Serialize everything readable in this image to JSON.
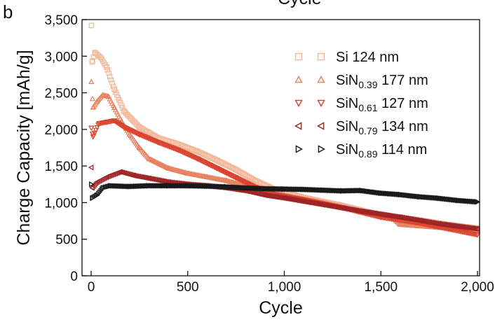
{
  "panel_label": "b",
  "top_cut_text": "Cycle",
  "chart_data": {
    "type": "scatter",
    "title": "",
    "xlabel": "Cycle",
    "ylabel": "Charge Capacity [mAh/g]",
    "xlim": [
      0,
      2000
    ],
    "ylim": [
      0,
      3500
    ],
    "x_ticks": [
      0,
      500,
      1000,
      1500,
      2000
    ],
    "y_ticks": [
      0,
      500,
      1000,
      1500,
      2000,
      2500,
      3000,
      3500
    ],
    "x_tick_labels": [
      "0",
      "500",
      "1,000",
      "1,500",
      "2,000"
    ],
    "y_tick_labels": [
      "0",
      "500",
      "1,000",
      "1,500",
      "2,000",
      "2,500",
      "3,000",
      "3,500"
    ],
    "grid": false,
    "legend_position": "top-right",
    "series": [
      {
        "name_base": "Si",
        "name_sub": "",
        "name_suffix": " 124 nm",
        "marker": "square",
        "color": "#f2b89c",
        "points": [
          [
            1,
            3420
          ],
          [
            5,
            2920
          ],
          [
            20,
            3050
          ],
          [
            50,
            2980
          ],
          [
            80,
            2850
          ],
          [
            120,
            2550
          ],
          [
            170,
            2250
          ],
          [
            250,
            2030
          ],
          [
            350,
            1880
          ],
          [
            450,
            1800
          ],
          [
            550,
            1700
          ],
          [
            650,
            1580
          ],
          [
            750,
            1450
          ],
          [
            850,
            1300
          ],
          [
            950,
            1180
          ],
          [
            1100,
            1070
          ],
          [
            1300,
            960
          ],
          [
            1500,
            830
          ],
          [
            1700,
            760
          ],
          [
            1850,
            700
          ],
          [
            2000,
            650
          ]
        ]
      },
      {
        "name_base": "SiN",
        "name_sub": "0.39",
        "name_suffix": " 177 nm",
        "marker": "triangle-up",
        "color": "#e8805f",
        "points": [
          [
            1,
            2650
          ],
          [
            10,
            2300
          ],
          [
            30,
            2380
          ],
          [
            60,
            2470
          ],
          [
            90,
            2450
          ],
          [
            120,
            2300
          ],
          [
            160,
            2100
          ],
          [
            200,
            1930
          ],
          [
            250,
            1750
          ],
          [
            300,
            1600
          ],
          [
            400,
            1470
          ],
          [
            500,
            1400
          ],
          [
            600,
            1350
          ],
          [
            700,
            1300
          ],
          [
            800,
            1230
          ],
          [
            900,
            1180
          ],
          [
            1000,
            1100
          ],
          [
            1200,
            1000
          ],
          [
            1400,
            880
          ],
          [
            1550,
            820
          ],
          [
            1600,
            700
          ],
          [
            1800,
            660
          ],
          [
            2000,
            620
          ]
        ]
      },
      {
        "name_base": "SiN",
        "name_sub": "0.61",
        "name_suffix": " 127 nm",
        "marker": "triangle-down",
        "color": "#d9432e",
        "points": [
          [
            1,
            2020
          ],
          [
            10,
            1900
          ],
          [
            40,
            2080
          ],
          [
            80,
            2100
          ],
          [
            120,
            2120
          ],
          [
            170,
            2030
          ],
          [
            250,
            1930
          ],
          [
            350,
            1820
          ],
          [
            450,
            1720
          ],
          [
            550,
            1600
          ],
          [
            650,
            1470
          ],
          [
            750,
            1340
          ],
          [
            850,
            1210
          ],
          [
            950,
            1110
          ],
          [
            1100,
            1040
          ],
          [
            1300,
            930
          ],
          [
            1500,
            800
          ],
          [
            1700,
            720
          ],
          [
            1850,
            640
          ],
          [
            2000,
            560
          ]
        ]
      },
      {
        "name_base": "SiN",
        "name_sub": "0.79",
        "name_suffix": " 134 nm",
        "marker": "triangle-left",
        "color": "#9e2525",
        "points": [
          [
            1,
            1480
          ],
          [
            5,
            1200
          ],
          [
            30,
            1280
          ],
          [
            80,
            1350
          ],
          [
            150,
            1420
          ],
          [
            220,
            1370
          ],
          [
            300,
            1330
          ],
          [
            400,
            1280
          ],
          [
            500,
            1250
          ],
          [
            600,
            1230
          ],
          [
            700,
            1200
          ],
          [
            800,
            1160
          ],
          [
            900,
            1100
          ],
          [
            1000,
            1060
          ],
          [
            1200,
            970
          ],
          [
            1400,
            880
          ],
          [
            1600,
            800
          ],
          [
            1800,
            710
          ],
          [
            2000,
            640
          ]
        ]
      },
      {
        "name_base": "SiN",
        "name_sub": "0.89",
        "name_suffix": " 114 nm",
        "marker": "triangle-right",
        "color": "#1a1a1a",
        "points": [
          [
            1,
            1250
          ],
          [
            5,
            1060
          ],
          [
            30,
            1100
          ],
          [
            60,
            1200
          ],
          [
            100,
            1230
          ],
          [
            200,
            1220
          ],
          [
            300,
            1230
          ],
          [
            400,
            1230
          ],
          [
            500,
            1230
          ],
          [
            600,
            1225
          ],
          [
            700,
            1215
          ],
          [
            800,
            1200
          ],
          [
            900,
            1190
          ],
          [
            1000,
            1185
          ],
          [
            1100,
            1180
          ],
          [
            1200,
            1170
          ],
          [
            1300,
            1160
          ],
          [
            1400,
            1165
          ],
          [
            1500,
            1130
          ],
          [
            1600,
            1110
          ],
          [
            1700,
            1080
          ],
          [
            1800,
            1060
          ],
          [
            1900,
            1030
          ],
          [
            2000,
            1010
          ]
        ]
      }
    ]
  }
}
